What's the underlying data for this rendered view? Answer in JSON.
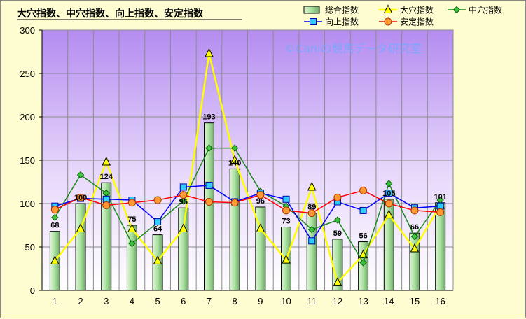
{
  "chart_data": {
    "type": "bar",
    "title": "大穴指数、中穴指数、向上指数、安定指数",
    "watermark": "©Caniの競馬データ研究室",
    "categories": [
      "1",
      "2",
      "3",
      "4",
      "5",
      "6",
      "7",
      "8",
      "9",
      "10",
      "11",
      "12",
      "13",
      "14",
      "15",
      "16"
    ],
    "ylim": [
      0,
      300
    ],
    "yticks": [
      0,
      50,
      100,
      150,
      200,
      250,
      300
    ],
    "grid": true,
    "legend_position": "top-right",
    "series": [
      {
        "name": "総合指数",
        "kind": "bar",
        "color": "#b6e8b0",
        "values": [
          68,
          100,
          124,
          75,
          64,
          95,
          193,
          140,
          96,
          73,
          89,
          59,
          56,
          105,
          66,
          101
        ],
        "labels": [
          "68",
          "100",
          "124",
          "75",
          "64",
          "95",
          "193",
          "140",
          "96",
          "73",
          "89",
          "59",
          "56",
          "105",
          "66",
          "101"
        ]
      },
      {
        "name": "大穴指数",
        "kind": "line",
        "marker": "triangle",
        "color": "#ffff00",
        "values": [
          34,
          71,
          148,
          71,
          34,
          71,
          273,
          150,
          71,
          35,
          119,
          9,
          41,
          87,
          48,
          98
        ]
      },
      {
        "name": "中穴指数",
        "kind": "line",
        "marker": "diamond",
        "color": "#1a8a1a",
        "values": [
          84,
          133,
          112,
          54,
          78,
          103,
          164,
          164,
          114,
          97,
          70,
          81,
          32,
          123,
          62,
          104
        ]
      },
      {
        "name": "向上指数",
        "kind": "line",
        "marker": "square",
        "color": "#0000ff",
        "values": [
          97,
          106,
          105,
          104,
          79,
          119,
          121,
          102,
          112,
          105,
          57,
          102,
          92,
          112,
          95,
          97
        ]
      },
      {
        "name": "安定指数",
        "kind": "line",
        "marker": "circle",
        "color": "#ff0000",
        "values": [
          93,
          107,
          98,
          101,
          104,
          110,
          102,
          101,
          110,
          92,
          89,
          107,
          115,
          100,
          92,
          90
        ]
      }
    ]
  }
}
